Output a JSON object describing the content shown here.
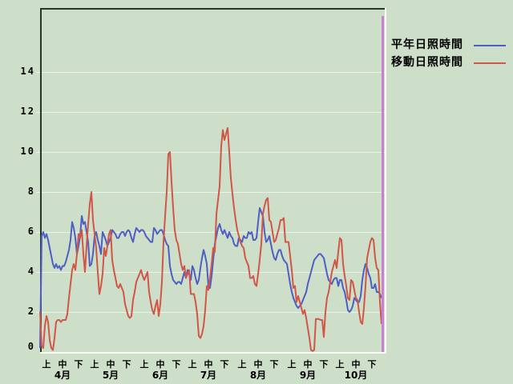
{
  "chart_data": {
    "type": "line",
    "title": "",
    "xlabel": "",
    "ylabel": "",
    "x_unit": "day (1 = April 1, 214 = October 31)",
    "y_ticks": [
      0,
      2,
      4,
      6,
      8,
      10,
      12,
      14
    ],
    "ylim": [
      0,
      17.2
    ],
    "grid": true,
    "gridline_color": "#edf3e9",
    "legend_position": "top-right-outside",
    "x_ticks": [
      {
        "day": 5,
        "label": "上"
      },
      {
        "day": 15,
        "label": "中"
      },
      {
        "day": 25,
        "label": "下"
      },
      {
        "day": 35,
        "label": "上"
      },
      {
        "day": 45,
        "label": "中"
      },
      {
        "day": 55,
        "label": "下"
      },
      {
        "day": 66,
        "label": "上"
      },
      {
        "day": 76,
        "label": "中"
      },
      {
        "day": 86,
        "label": "下"
      },
      {
        "day": 96,
        "label": "上"
      },
      {
        "day": 106,
        "label": "中"
      },
      {
        "day": 116,
        "label": "下"
      },
      {
        "day": 127,
        "label": "上"
      },
      {
        "day": 137,
        "label": "中"
      },
      {
        "day": 147,
        "label": "下"
      },
      {
        "day": 158,
        "label": "上"
      },
      {
        "day": 168,
        "label": "中"
      },
      {
        "day": 178,
        "label": "下"
      },
      {
        "day": 188,
        "label": "上"
      },
      {
        "day": 198,
        "label": "中"
      },
      {
        "day": 208,
        "label": "下"
      }
    ],
    "x_months": [
      {
        "label": "4月",
        "day": 15
      },
      {
        "label": "5月",
        "day": 45
      },
      {
        "label": "6月",
        "day": 76
      },
      {
        "label": "7月",
        "day": 106
      },
      {
        "label": "8月",
        "day": 137
      },
      {
        "label": "9月",
        "day": 168
      },
      {
        "label": "10月",
        "day": 198
      }
    ],
    "series": [
      {
        "name": "平年日照時間",
        "color": "#4f5ec2",
        "values": [
          0.2,
          5.8,
          6.0,
          5.7,
          5.9,
          5.6,
          5.2,
          4.8,
          4.4,
          4.2,
          4.4,
          4.2,
          4.3,
          4.1,
          4.3,
          4.3,
          4.5,
          4.8,
          5.1,
          5.6,
          6.5,
          6.2,
          5.7,
          4.9,
          5.3,
          5.8,
          6.8,
          6.4,
          6.5,
          6.0,
          5.5,
          4.3,
          4.4,
          4.9,
          5.8,
          6.0,
          5.6,
          5.3,
          4.9,
          6.0,
          5.8,
          5.6,
          5.3,
          5.5,
          5.7,
          6.1,
          6.0,
          5.9,
          5.7,
          5.7,
          5.9,
          6.0,
          6.0,
          5.8,
          6.0,
          6.1,
          6.0,
          5.7,
          5.5,
          5.9,
          6.2,
          6.1,
          6.0,
          6.1,
          6.1,
          6.0,
          5.8,
          5.7,
          5.6,
          5.5,
          5.5,
          6.2,
          6.1,
          5.9,
          6.0,
          6.1,
          6.1,
          5.9,
          5.6,
          5.4,
          5.3,
          4.3,
          3.9,
          3.6,
          3.5,
          3.4,
          3.5,
          3.5,
          3.4,
          3.7,
          4.0,
          3.7,
          4.1,
          3.9,
          3.6,
          4.3,
          4.1,
          3.7,
          3.4,
          3.6,
          4.2,
          4.7,
          5.1,
          4.8,
          4.4,
          3.3,
          3.2,
          3.8,
          4.6,
          5.4,
          5.8,
          6.2,
          6.4,
          6.1,
          5.9,
          6.1,
          5.9,
          5.7,
          6.0,
          5.8,
          5.7,
          5.4,
          5.3,
          5.3,
          5.7,
          5.6,
          5.5,
          5.8,
          5.7,
          5.7,
          6.0,
          5.9,
          6.0,
          5.6,
          5.6,
          5.7,
          6.5,
          7.2,
          7.0,
          6.8,
          6.0,
          5.5,
          5.6,
          5.8,
          5.4,
          5.0,
          4.7,
          4.6,
          4.9,
          5.1,
          5.1,
          4.8,
          4.6,
          4.5,
          4.4,
          3.9,
          3.4,
          3.0,
          2.7,
          2.5,
          2.3,
          2.2,
          2.3,
          2.4,
          2.6,
          2.8,
          3.0,
          3.4,
          3.7,
          4.0,
          4.3,
          4.6,
          4.7,
          4.8,
          4.9,
          4.9,
          4.8,
          4.7,
          4.3,
          3.9,
          3.6,
          3.5,
          3.4,
          3.6,
          3.7,
          3.7,
          3.3,
          3.6,
          3.6,
          3.2,
          3.0,
          2.6,
          2.1,
          2.0,
          2.1,
          2.3,
          2.7,
          2.6,
          2.5,
          2.5,
          2.8,
          3.6,
          4.1,
          4.4,
          4.2,
          3.9,
          3.7,
          3.2,
          3.2,
          3.4,
          3.0,
          3.0,
          2.9,
          2.7
        ]
      },
      {
        "name": "移動日照時間",
        "color": "#d15648",
        "values": [
          2.0,
          0.3,
          0.2,
          1.3,
          1.8,
          1.5,
          0.6,
          0.2,
          0.1,
          0.7,
          1.5,
          1.6,
          1.6,
          1.5,
          1.6,
          1.6,
          1.6,
          1.9,
          2.7,
          3.4,
          4.1,
          4.4,
          4.1,
          4.9,
          5.9,
          5.7,
          6.1,
          4.9,
          4.0,
          5.3,
          6.4,
          7.4,
          8.0,
          6.6,
          5.9,
          5.2,
          4.0,
          2.9,
          3.3,
          3.9,
          5.2,
          4.8,
          5.3,
          5.9,
          6.1,
          4.6,
          4.1,
          3.7,
          3.3,
          3.2,
          3.4,
          3.2,
          3.0,
          2.4,
          2.1,
          1.8,
          1.7,
          1.8,
          2.6,
          3.0,
          3.5,
          3.7,
          3.9,
          4.1,
          3.8,
          3.6,
          3.8,
          4.0,
          3.0,
          2.5,
          2.1,
          1.9,
          2.3,
          2.6,
          1.8,
          2.4,
          3.5,
          5.5,
          6.8,
          8.0,
          9.9,
          10.0,
          8.5,
          7.2,
          6.1,
          5.6,
          5.4,
          4.9,
          4.4,
          4.1,
          4.3,
          3.7,
          3.9,
          4.1,
          2.9,
          2.9,
          2.9,
          2.5,
          1.9,
          0.8,
          0.7,
          0.9,
          1.3,
          2.1,
          3.3,
          3.1,
          3.7,
          4.4,
          5.2,
          5.0,
          6.9,
          7.6,
          8.3,
          10.3,
          11.1,
          10.6,
          10.9,
          11.2,
          10.0,
          8.7,
          7.9,
          7.2,
          6.6,
          6.1,
          5.8,
          5.5,
          5.3,
          5.2,
          4.7,
          4.5,
          4.3,
          3.7,
          3.7,
          3.8,
          3.4,
          3.3,
          3.9,
          4.6,
          5.4,
          6.9,
          7.3,
          7.6,
          7.7,
          6.6,
          6.5,
          6.0,
          5.5,
          5.6,
          5.9,
          6.2,
          6.6,
          6.6,
          6.7,
          5.5,
          5.5,
          5.5,
          4.8,
          4.1,
          3.2,
          3.3,
          2.5,
          2.8,
          2.5,
          2.2,
          1.9,
          2.1,
          1.7,
          1.2,
          0.7,
          0.1,
          0.05,
          0.1,
          1.65,
          1.65,
          1.65,
          1.6,
          1.6,
          0.75,
          2.0,
          2.7,
          3.0,
          3.5,
          4.0,
          4.3,
          4.6,
          4.2,
          5.0,
          5.7,
          5.6,
          4.4,
          3.8,
          3.3,
          2.7,
          2.6,
          3.6,
          3.5,
          3.1,
          2.7,
          2.6,
          2.0,
          1.5,
          1.4,
          2.2,
          3.3,
          4.7,
          5.1,
          5.5,
          5.7,
          5.6,
          4.7,
          4.2,
          4.1,
          2.5,
          1.4
        ]
      }
    ],
    "vertical_marker_line": {
      "day": 214.5,
      "color": "#c97fd2"
    }
  },
  "legend": {
    "items": [
      {
        "label": "平年日照時間",
        "color": "#4f5ec2"
      },
      {
        "label": "移動日照時間",
        "color": "#d15648"
      }
    ]
  },
  "colors": {
    "background": "#cddfc9",
    "border_dark": "#233826",
    "border_light": "#f6faf2",
    "gridline": "#edf3e9",
    "marker_line": "#c97fd2",
    "text": "#000000"
  }
}
